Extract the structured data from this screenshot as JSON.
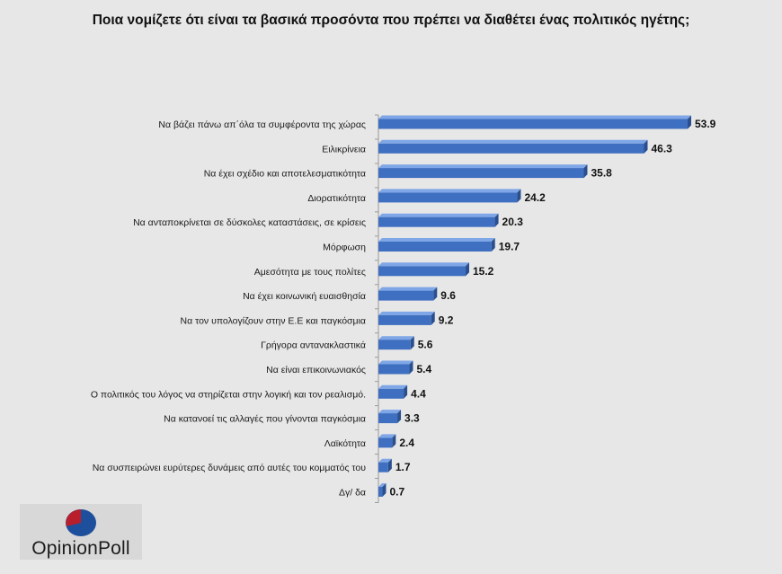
{
  "title": "Ποια νομίζετε ότι είναι τα βασικά προσόντα που πρέπει να διαθέτει ένας πολιτικός ηγέτης;",
  "logo": {
    "text": "OpinionPoll",
    "colors": {
      "blue": "#1e4f9c",
      "red": "#b81f2a"
    }
  },
  "colors": {
    "bar": "#3f6fc0",
    "bar_top": "#7fa6e6",
    "bar_side": "#2b4f8e",
    "background": "#e7e7e7",
    "axis": "#9a9a9a"
  },
  "chart_data": {
    "type": "bar",
    "orientation": "horizontal",
    "categories": [
      "Να βάζει πάνω απ΄όλα τα συμφέροντα της χώρας",
      "Ειλικρίνεια",
      "Να έχει σχέδιο και αποτελεσματικότητα",
      "Διορατικότητα",
      "Να ανταποκρίνεται σε δύσκολες καταστάσεις, σε κρίσεις",
      "Μόρφωση",
      "Αμεσότητα με τους πολίτες",
      "Να έχει κοινωνική ευαισθησία",
      "Να τον υπολογίζουν στην Ε.Ε και παγκόσμια",
      "Γρήγορα αντανακλαστικά",
      "Να είναι επικοινωνιακός",
      "Ο πολιτικός του λόγος να στηρίζεται στην λογική και τον ρεαλισμό.",
      "Να κατανοεί τις αλλαγές που γίνονται παγκόσμια",
      "Λαϊκότητα",
      "Να συσπειρώνει ευρύτερες δυνάμεις από αυτές του κομματός του",
      "Δγ/ δα"
    ],
    "values": [
      53.9,
      46.3,
      35.8,
      24.2,
      20.3,
      19.7,
      15.2,
      9.6,
      9.2,
      5.6,
      5.4,
      4.4,
      3.3,
      2.4,
      1.7,
      0.7
    ],
    "data_labels": [
      "53.9",
      "46.3",
      "35.8",
      "24.2",
      "20.3",
      "19.7",
      "15.2",
      "9.6",
      "9.2",
      "5.6",
      "5.4",
      "4.4",
      "3.3",
      "2.4",
      "1.7",
      "0.7"
    ],
    "xlim": [
      0,
      60
    ],
    "grid": false,
    "legend": "none"
  }
}
